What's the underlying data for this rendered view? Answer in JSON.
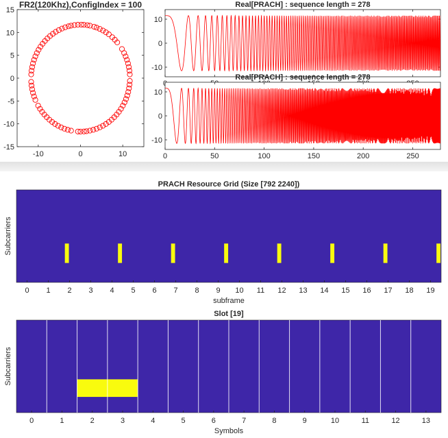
{
  "chart_data": [
    {
      "type": "scatter",
      "title": "FR2(120Khz),ConfigIndex = 100",
      "xlim": [
        -15,
        15
      ],
      "ylim": [
        -15,
        15
      ],
      "xticks": [
        -10,
        0,
        10
      ],
      "yticks": [
        15,
        10,
        5,
        0,
        -5,
        -10,
        -15
      ],
      "marker": "circle",
      "marker_color": "#ff0000",
      "description_points": "points on a circle of radius ~11.7 centered at origin",
      "radius": 11.7,
      "angles_deg": [
        97,
        93,
        89,
        86,
        82,
        79,
        74,
        71,
        67,
        63,
        59,
        55,
        50,
        46,
        42,
        33,
        28,
        24,
        20,
        16,
        12,
        8,
        4,
        -3,
        -7,
        -11,
        -15,
        -19,
        -23,
        -27,
        -31,
        -35,
        -39,
        -43,
        -47,
        -51,
        -55,
        -59,
        -63,
        -67,
        -71,
        -75,
        -79,
        -83,
        -86,
        -90,
        -93,
        -101,
        -105,
        -109,
        -113,
        -117,
        -121,
        -125,
        -129,
        -133,
        -137,
        -141,
        -145,
        -149,
        -156,
        -160,
        -164,
        -168,
        -172,
        -176,
        176,
        172,
        168,
        164,
        160,
        156,
        152,
        148,
        144,
        140,
        136,
        132,
        128,
        124,
        120,
        116,
        112,
        108,
        104,
        101
      ]
    },
    {
      "type": "line",
      "title": "Real[PRACH] : sequence length = 278",
      "xlim": [
        0,
        278
      ],
      "ylim": [
        -14,
        14
      ],
      "xticks": [
        0,
        50,
        100,
        150,
        200,
        250
      ],
      "yticks": [
        10,
        0,
        -10
      ],
      "line_color": "#ff0000",
      "amplitude": 11.5,
      "phase_coefficient": 1,
      "sequence_length": 278
    },
    {
      "type": "line",
      "title": "Real[PRACH] : sequence length = 278",
      "xlim": [
        0,
        278
      ],
      "ylim": [
        -14,
        14
      ],
      "xticks": [
        0,
        50,
        100,
        150,
        200,
        250
      ],
      "yticks": [
        10,
        0,
        -10
      ],
      "line_color": "#ff0000",
      "amplitude": 11.5,
      "phase_coefficient": 2,
      "sequence_length": 278
    },
    {
      "type": "heatmap",
      "title": "PRACH Resource Grid (Size [792 2240])",
      "xlabel": "subframe",
      "ylabel": "Subcarriers",
      "xlim": [
        -0.5,
        19.5
      ],
      "xticks": [
        0,
        1,
        2,
        3,
        4,
        5,
        6,
        7,
        8,
        9,
        10,
        11,
        12,
        13,
        14,
        15,
        16,
        17,
        18,
        19
      ],
      "background_color": "#3e26a8",
      "highlight_color": "#f9fb0e",
      "prach_occasions_subframe": [
        1.875,
        4.375,
        6.875,
        9.375,
        11.875,
        14.375,
        16.875,
        19.375
      ],
      "occasion_width_subframe": 0.19,
      "occasion_rows_fraction": [
        0.58,
        0.79
      ]
    },
    {
      "type": "heatmap",
      "title": "Slot [19]",
      "xlabel": "Symbols",
      "ylabel": "Subcarriers",
      "xlim": [
        -0.5,
        13.5
      ],
      "xticks": [
        0,
        1,
        2,
        3,
        4,
        5,
        6,
        7,
        8,
        9,
        10,
        11,
        12,
        13
      ],
      "background_color": "#3e26a8",
      "highlight_color": "#f9fb0e",
      "gridline_color": "#ffffff",
      "symbol_boundaries": [
        0.5,
        1.5,
        2.5,
        3.5,
        4.5,
        5.5,
        6.5,
        7.5,
        8.5,
        9.5,
        10.5,
        11.5,
        12.5
      ],
      "prach_symbols": [
        1.5,
        3.5
      ],
      "prach_rows_fraction": [
        0.64,
        0.83
      ]
    }
  ]
}
